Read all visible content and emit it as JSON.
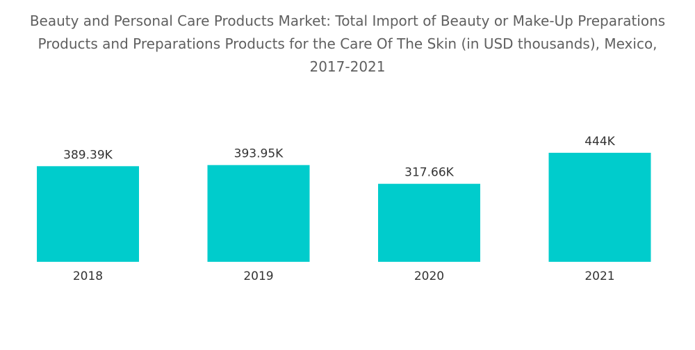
{
  "chart_data": {
    "type": "bar",
    "title": "Beauty and Personal Care Products Market: Total Import of Beauty or Make-Up Preparations\nProducts and Preparations Products for the Care Of The Skin (in USD thousands), Mexico,\n2017-2021",
    "xlabel": "",
    "ylabel": "",
    "categories": [
      "2018",
      "2019",
      "2020",
      "2021"
    ],
    "values": [
      389.39,
      393.95,
      317.66,
      444
    ],
    "value_labels": [
      "389.39K",
      "393.95K",
      "317.66K",
      "444K"
    ],
    "ylim": [
      0,
      444
    ],
    "grid": false,
    "legend": "none",
    "colors": {
      "bar": "#00CCCC",
      "text": "#333333",
      "title": "#5f5f5f"
    }
  }
}
